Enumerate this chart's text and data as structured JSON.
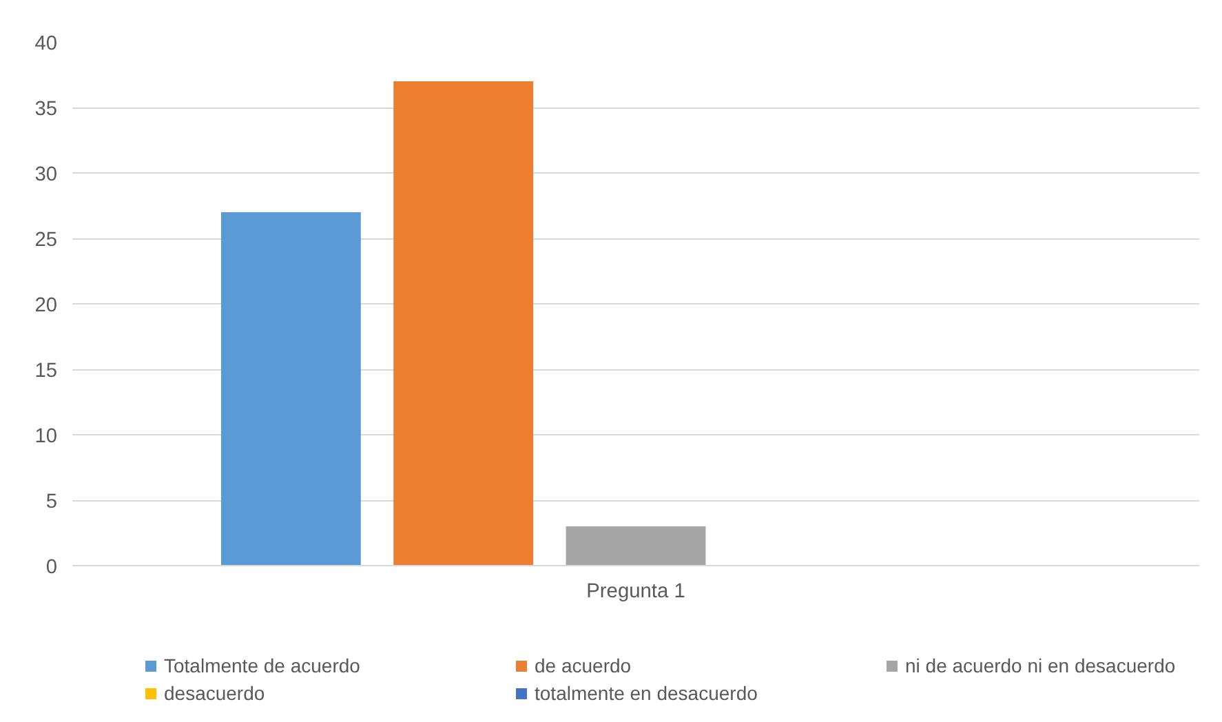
{
  "chart_data": {
    "type": "bar",
    "categories": [
      "Pregunta 1"
    ],
    "series": [
      {
        "name": "Totalmente de acuerdo",
        "color": "#5b9bd5",
        "values": [
          27
        ]
      },
      {
        "name": "de acuerdo",
        "color": "#ed7d31",
        "values": [
          37
        ]
      },
      {
        "name": "ni de acuerdo ni en desacuerdo",
        "color": "#a5a5a5",
        "values": [
          3
        ]
      },
      {
        "name": "desacuerdo",
        "color": "#ffc000",
        "values": [
          0
        ]
      },
      {
        "name": "totalmente en desacuerdo",
        "color": "#4472c4",
        "values": [
          0
        ]
      }
    ],
    "ylim": [
      0,
      40
    ],
    "yticks": [
      0,
      5,
      10,
      15,
      20,
      25,
      30,
      35,
      40
    ],
    "grid": "y",
    "legend": "bottom"
  }
}
